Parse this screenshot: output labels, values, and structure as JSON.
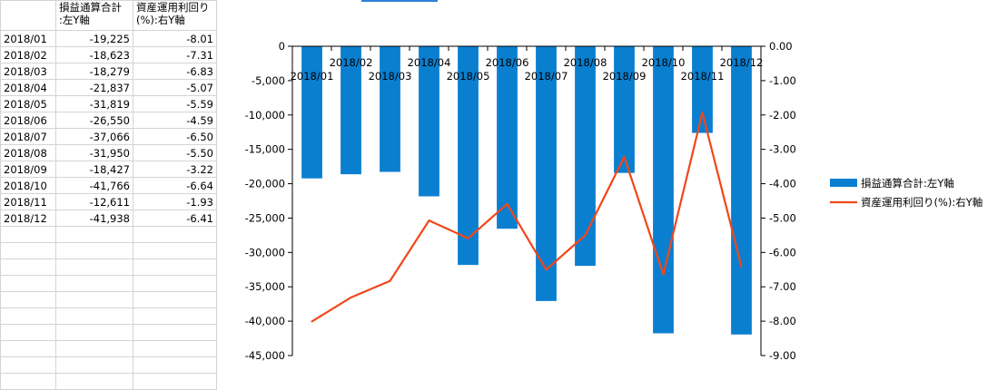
{
  "sheet": {
    "headers": [
      "",
      "損益通算合計\n:左Y軸",
      "資産運用利回り\n(%):右Y軸"
    ],
    "header_col2_lines": [
      "損益通算合計",
      ":左Y軸"
    ],
    "header_col3_lines": [
      "資産運用利回り",
      "(%):右Y軸"
    ],
    "rows": [
      {
        "month": "2018/01",
        "pl": "-19,225",
        "yield": "-8.01"
      },
      {
        "month": "2018/02",
        "pl": "-18,623",
        "yield": "-7.31"
      },
      {
        "month": "2018/03",
        "pl": "-18,279",
        "yield": "-6.83"
      },
      {
        "month": "2018/04",
        "pl": "-21,837",
        "yield": "-5.07"
      },
      {
        "month": "2018/05",
        "pl": "-31,819",
        "yield": "-5.59"
      },
      {
        "month": "2018/06",
        "pl": "-26,550",
        "yield": "-4.59"
      },
      {
        "month": "2018/07",
        "pl": "-37,066",
        "yield": "-6.50"
      },
      {
        "month": "2018/08",
        "pl": "-31,950",
        "yield": "-5.50"
      },
      {
        "month": "2018/09",
        "pl": "-18,427",
        "yield": "-3.22"
      },
      {
        "month": "2018/10",
        "pl": "-41,766",
        "yield": "-6.64"
      },
      {
        "month": "2018/11",
        "pl": "-12,611",
        "yield": "-1.93"
      },
      {
        "month": "2018/12",
        "pl": "-41,938",
        "yield": "-6.41"
      }
    ]
  },
  "colors": {
    "bar": "#0a7fd0",
    "line": "#f2461a",
    "grid": "#d4d4d4",
    "axis": "#000000",
    "accent_top": "#2f7fd8"
  },
  "chart_data": {
    "type": "bar",
    "combo_secondary_type": "line",
    "categories": [
      "2018/01",
      "2018/02",
      "2018/03",
      "2018/04",
      "2018/05",
      "2018/06",
      "2018/07",
      "2018/08",
      "2018/09",
      "2018/10",
      "2018/11",
      "2018/12"
    ],
    "series": [
      {
        "name": "損益通算合計:左Y軸",
        "type": "bar",
        "axis": "left",
        "values": [
          -19225,
          -18623,
          -18279,
          -21837,
          -31819,
          -26550,
          -37066,
          -31950,
          -18427,
          -41766,
          -12611,
          -41938
        ]
      },
      {
        "name": "資産運用利回り(%):右Y軸",
        "type": "line",
        "axis": "right",
        "values": [
          -8.01,
          -7.31,
          -6.83,
          -5.07,
          -5.59,
          -4.59,
          -6.5,
          -5.5,
          -3.22,
          -6.64,
          -1.93,
          -6.41
        ]
      }
    ],
    "ylim_left": [
      -45000,
      0
    ],
    "ylim_right": [
      -9,
      0
    ],
    "yticks_left": [
      "0",
      "-5,000",
      "-10,000",
      "-15,000",
      "-20,000",
      "-25,000",
      "-30,000",
      "-35,000",
      "-40,000",
      "-45,000"
    ],
    "yticks_right": [
      "0.00",
      "-1.00",
      "-2.00",
      "-3.00",
      "-4.00",
      "-5.00",
      "-6.00",
      "-7.00",
      "-8.00",
      "-9.00"
    ],
    "grid": false,
    "legend_position": "right",
    "category_labels_position": "top, staggered"
  }
}
